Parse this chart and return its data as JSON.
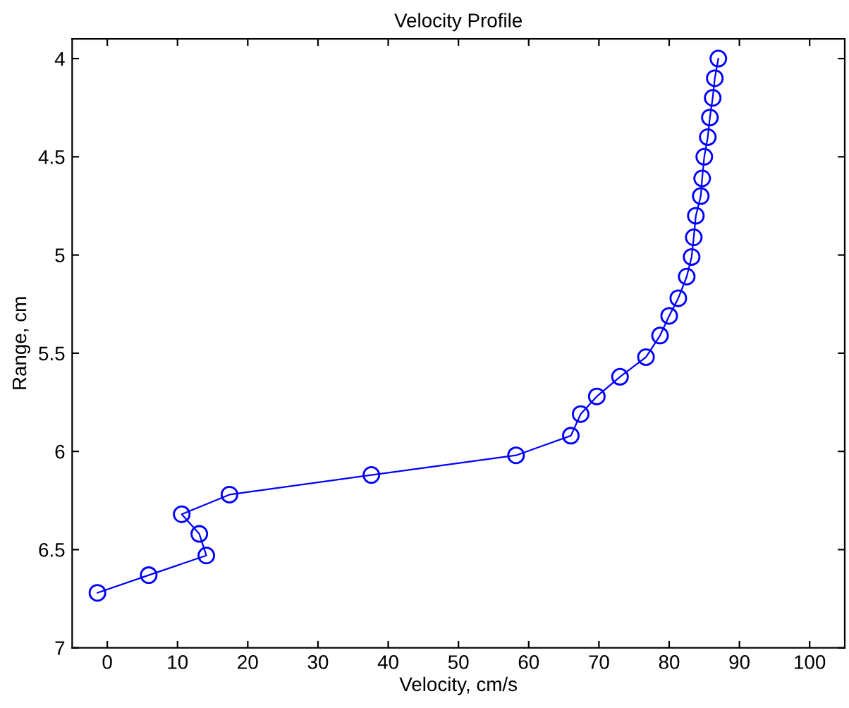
{
  "chart_data": {
    "type": "line",
    "title": "Velocity Profile",
    "xlabel": "Velocity, cm/s",
    "ylabel": "Range, cm",
    "x": [
      87.0,
      86.5,
      86.2,
      85.8,
      85.5,
      85.0,
      84.7,
      84.5,
      83.8,
      83.5,
      83.2,
      82.5,
      81.3,
      80.0,
      78.7,
      76.7,
      73.0,
      69.7,
      67.4,
      66.0,
      58.2,
      37.6,
      17.4,
      10.6,
      13.1,
      14.1,
      5.9,
      -1.4
    ],
    "series": [
      {
        "color": "#0000ff",
        "values": [
          4.0,
          4.1,
          4.2,
          4.3,
          4.4,
          4.5,
          4.61,
          4.7,
          4.8,
          4.91,
          5.01,
          5.11,
          5.22,
          5.31,
          5.41,
          5.52,
          5.62,
          5.72,
          5.81,
          5.92,
          6.02,
          6.12,
          6.22,
          6.32,
          6.42,
          6.53,
          6.63,
          6.72
        ]
      }
    ],
    "xlim": [
      -5,
      105
    ],
    "xticks": [
      0,
      10,
      20,
      30,
      40,
      50,
      60,
      70,
      80,
      90,
      100
    ],
    "ylim": [
      7,
      3.9
    ],
    "yticks": [
      4,
      4.5,
      5,
      5.5,
      6,
      6.5,
      7
    ],
    "marker": "circle",
    "line_style": "solid",
    "grid": false,
    "legend": false
  }
}
